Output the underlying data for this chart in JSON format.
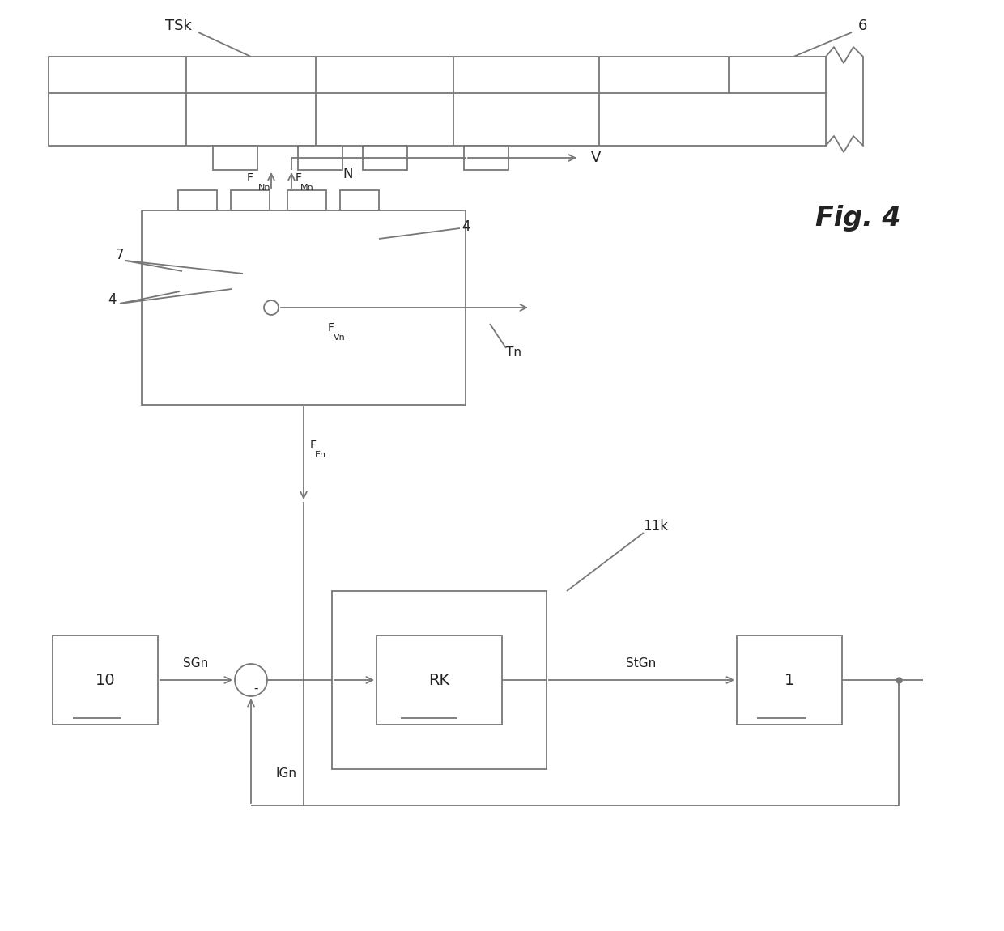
{
  "bg_color": "#ffffff",
  "line_color": "#777777",
  "text_color": "#222222",
  "fig_label": "Fig. 4",
  "label_6": "6",
  "label_TSk": "TSk",
  "label_N": "N",
  "label_7": "7",
  "label_4a": "4",
  "label_4b": "4",
  "label_FNn": "F",
  "label_FNn_sub": "Nn",
  "label_FMn": "F",
  "label_FMn_sub": "Mn",
  "label_FVn": "F",
  "label_FVn_sub": "Vn",
  "label_V": "V",
  "label_Tn": "Tn",
  "label_FEn": "F",
  "label_FEn_sub": "En",
  "label_11k": "11k",
  "label_10": "10",
  "label_RK": "RK",
  "label_1": "1",
  "label_SGn": "SGn",
  "label_IGn": "IGn",
  "label_StGn": "StGn",
  "label_minus": "-"
}
